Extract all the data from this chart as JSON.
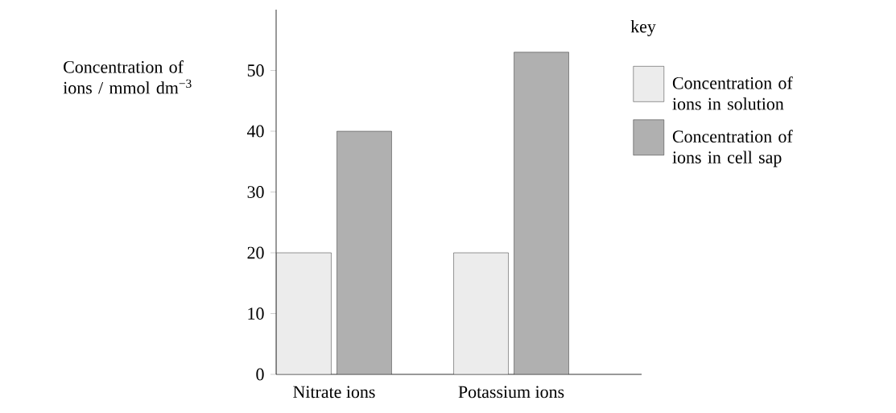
{
  "chart_data": {
    "type": "bar",
    "ylabel": "Concentration of ions / mmol dm$^{−3}$",
    "legend_title": "key",
    "categories": [
      "Nitrate ions",
      "Potassium ions"
    ],
    "series": [
      {
        "name": "Concentration of ions in solution",
        "color": "#ececec",
        "values": [
          20,
          20
        ]
      },
      {
        "name": "Concentration of ions in cell sap",
        "color": "#b0b0b0",
        "values": [
          40,
          53
        ]
      }
    ],
    "ylim": [
      0,
      60
    ],
    "yticks": [
      0,
      10,
      20,
      30,
      40,
      50
    ],
    "legend": "right"
  }
}
